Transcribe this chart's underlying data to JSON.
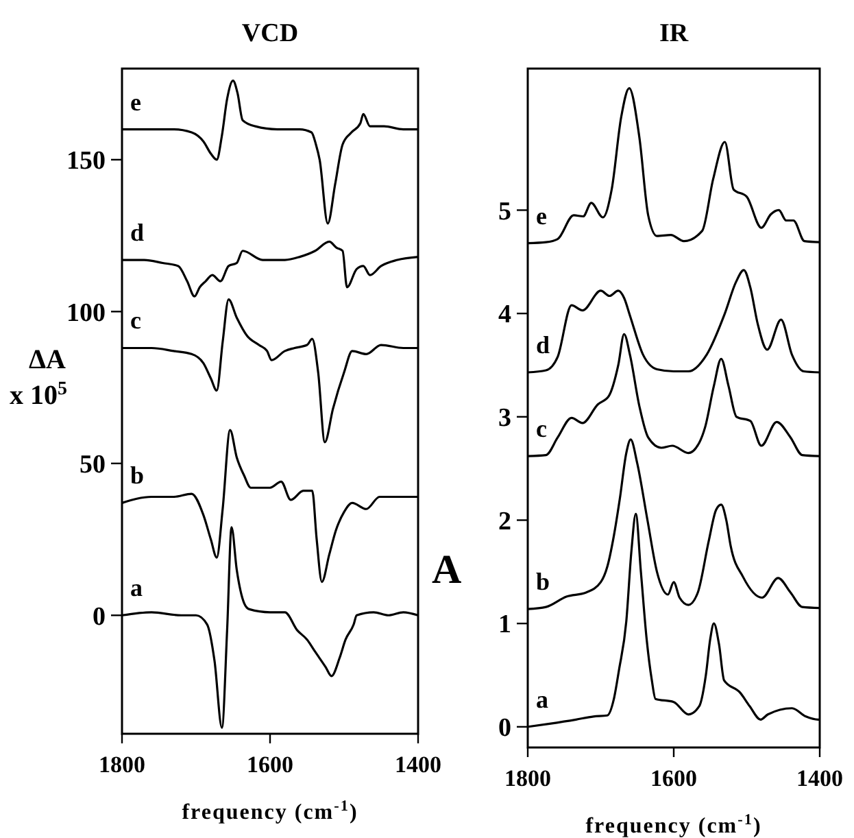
{
  "chart_data": [
    {
      "type": "line",
      "title": "VCD",
      "xlabel": "frequency (cm$^{-1}$)",
      "ylabel": "ΔA x 10$^{5}$",
      "xlim": [
        1800,
        1400
      ],
      "xticks": [
        1800,
        1600,
        1400
      ],
      "ylim": [
        -39,
        180
      ],
      "yticks": [
        0,
        50,
        100,
        150
      ],
      "series": [
        {
          "name": "a",
          "color": "#000000",
          "x": [
            1800,
            1760,
            1720,
            1700,
            1685,
            1675,
            1665,
            1658,
            1652,
            1645,
            1635,
            1628,
            1600,
            1580,
            1563,
            1550,
            1539,
            1525,
            1517,
            1506,
            1498,
            1487,
            1483,
            1460,
            1440,
            1420,
            1400
          ],
          "values": [
            0,
            1,
            0,
            0,
            -3,
            -15,
            -37,
            -5,
            29,
            15,
            4,
            2,
            1,
            1,
            -5,
            -8,
            -12,
            -17,
            -20,
            -14,
            -8,
            -3,
            0,
            1,
            0,
            1,
            0
          ]
        },
        {
          "name": "b",
          "color": "#000000",
          "x": [
            1800,
            1760,
            1730,
            1706,
            1690,
            1680,
            1672,
            1664,
            1654,
            1645,
            1635,
            1626,
            1600,
            1585,
            1572,
            1555,
            1543,
            1537,
            1530,
            1520,
            1511,
            1500,
            1489,
            1470,
            1452,
            1420,
            1400
          ],
          "values": [
            37,
            39,
            39,
            40,
            33,
            25,
            19,
            35,
            61,
            52,
            46,
            42,
            42,
            44,
            38,
            41,
            41,
            25,
            11,
            20,
            28,
            34,
            37,
            35,
            39,
            39,
            39
          ]
        },
        {
          "name": "c",
          "color": "#000000",
          "x": [
            1800,
            1760,
            1730,
            1706,
            1690,
            1680,
            1672,
            1664,
            1656,
            1645,
            1631,
            1615,
            1604,
            1598,
            1580,
            1567,
            1550,
            1543,
            1535,
            1526,
            1515,
            1500,
            1489,
            1470,
            1450,
            1420,
            1400
          ],
          "values": [
            88,
            88,
            87,
            86,
            83,
            78,
            74,
            90,
            104,
            98,
            92,
            89,
            87,
            84,
            87,
            88,
            89,
            91,
            80,
            57,
            68,
            80,
            87,
            86,
            89,
            88,
            88
          ]
        },
        {
          "name": "d",
          "color": "#000000",
          "x": [
            1800,
            1770,
            1745,
            1724,
            1712,
            1702,
            1695,
            1687,
            1678,
            1667,
            1656,
            1645,
            1637,
            1610,
            1580,
            1560,
            1539,
            1520,
            1510,
            1502,
            1496,
            1483,
            1474,
            1465,
            1450,
            1428,
            1400
          ],
          "values": [
            117,
            117,
            116,
            115,
            110,
            105,
            108,
            110,
            112,
            110,
            115,
            116,
            120,
            117,
            117,
            118,
            120,
            123,
            121,
            120,
            108,
            114,
            115,
            112,
            115,
            117,
            118
          ]
        },
        {
          "name": "e",
          "color": "#000000",
          "x": [
            1800,
            1760,
            1730,
            1706,
            1690,
            1680,
            1672,
            1665,
            1658,
            1650,
            1644,
            1637,
            1620,
            1590,
            1560,
            1544,
            1538,
            1533,
            1522,
            1512,
            1502,
            1490,
            1478,
            1474,
            1465,
            1446,
            1420,
            1400
          ],
          "values": [
            160,
            160,
            160,
            159,
            156,
            152,
            150,
            158,
            170,
            176,
            172,
            163,
            161,
            160,
            160,
            159,
            155,
            150,
            129,
            142,
            155,
            159,
            162,
            165,
            161,
            161,
            160,
            160
          ]
        }
      ]
    },
    {
      "type": "line",
      "title": "IR",
      "xlabel": "frequency (cm$^{-1}$)",
      "ylabel": "A",
      "xlim": [
        1800,
        1400
      ],
      "xticks": [
        1800,
        1600,
        1400
      ],
      "ylim": [
        -0.2,
        6.37
      ],
      "yticks": [
        0,
        1,
        2,
        3,
        4,
        5
      ],
      "series": [
        {
          "name": "a",
          "color": "#000000",
          "x": [
            1800,
            1770,
            1734,
            1710,
            1691,
            1682,
            1675,
            1665,
            1658,
            1652,
            1645,
            1637,
            1630,
            1625,
            1600,
            1580,
            1565,
            1556,
            1550,
            1545,
            1538,
            1531,
            1509,
            1496,
            1481,
            1471,
            1438,
            1419,
            1402,
            1400
          ],
          "values": [
            0,
            0.03,
            0.07,
            0.1,
            0.11,
            0.27,
            0.55,
            1.02,
            1.7,
            2.06,
            1.5,
            0.84,
            0.45,
            0.27,
            0.24,
            0.12,
            0.2,
            0.5,
            0.85,
            1.0,
            0.8,
            0.45,
            0.33,
            0.2,
            0.07,
            0.12,
            0.18,
            0.1,
            0.07,
            0.07
          ]
        },
        {
          "name": "b",
          "color": "#000000",
          "x": [
            1800,
            1775,
            1747,
            1720,
            1700,
            1691,
            1682,
            1674,
            1665,
            1659,
            1650,
            1636,
            1623,
            1608,
            1600,
            1592,
            1580,
            1567,
            1552,
            1542,
            1535,
            1528,
            1522,
            1505,
            1479,
            1457,
            1440,
            1424,
            1400
          ],
          "values": [
            1.14,
            1.16,
            1.26,
            1.3,
            1.4,
            1.55,
            1.85,
            2.2,
            2.65,
            2.78,
            2.55,
            2.0,
            1.5,
            1.28,
            1.4,
            1.25,
            1.18,
            1.3,
            1.8,
            2.1,
            2.15,
            2.0,
            1.75,
            1.45,
            1.25,
            1.44,
            1.3,
            1.16,
            1.15
          ]
        },
        {
          "name": "c",
          "color": "#000000",
          "x": [
            1800,
            1775,
            1759,
            1740,
            1725,
            1704,
            1689,
            1676,
            1668,
            1660,
            1647,
            1635,
            1617,
            1602,
            1580,
            1565,
            1557,
            1545,
            1535,
            1525,
            1514,
            1495,
            1480,
            1459,
            1440,
            1424,
            1400
          ],
          "values": [
            2.62,
            2.63,
            2.8,
            2.99,
            2.94,
            3.12,
            3.2,
            3.5,
            3.8,
            3.6,
            3.1,
            2.8,
            2.7,
            2.72,
            2.65,
            2.75,
            2.9,
            3.3,
            3.56,
            3.3,
            3.0,
            2.96,
            2.72,
            2.95,
            2.8,
            2.63,
            2.62
          ]
        },
        {
          "name": "d",
          "color": "#000000",
          "x": [
            1800,
            1775,
            1759,
            1740,
            1725,
            1700,
            1688,
            1676,
            1668,
            1660,
            1642,
            1623,
            1600,
            1580,
            1555,
            1530,
            1515,
            1504,
            1495,
            1485,
            1472,
            1453,
            1438,
            1422,
            1400
          ],
          "values": [
            3.43,
            3.45,
            3.58,
            4.08,
            4.03,
            4.22,
            4.17,
            4.22,
            4.15,
            3.98,
            3.6,
            3.46,
            3.44,
            3.44,
            3.6,
            4.0,
            4.3,
            4.42,
            4.25,
            3.9,
            3.65,
            3.94,
            3.6,
            3.44,
            3.43
          ]
        },
        {
          "name": "e",
          "color": "#000000",
          "x": [
            1800,
            1775,
            1759,
            1737,
            1724,
            1713,
            1697,
            1685,
            1672,
            1661,
            1647,
            1635,
            1623,
            1604,
            1586,
            1561,
            1546,
            1530,
            1518,
            1500,
            1480,
            1467,
            1456,
            1446,
            1436,
            1421,
            1400
          ],
          "values": [
            4.68,
            4.69,
            4.72,
            4.95,
            4.94,
            5.07,
            4.93,
            5.2,
            5.9,
            6.18,
            5.7,
            4.95,
            4.75,
            4.76,
            4.7,
            4.8,
            5.3,
            5.66,
            5.2,
            5.13,
            4.83,
            4.96,
            5.0,
            4.9,
            4.9,
            4.7,
            4.69
          ]
        }
      ]
    }
  ]
}
